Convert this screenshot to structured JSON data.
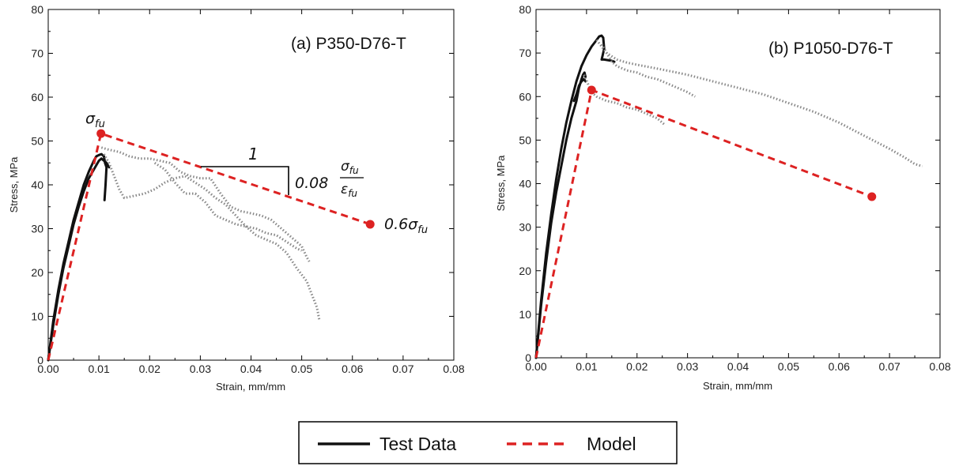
{
  "colors": {
    "test": "#111111",
    "test_scatter": "#888888",
    "model": "#dd2222"
  },
  "legend": {
    "items": [
      {
        "label": "Test Data",
        "style": "solid",
        "color": "#111111"
      },
      {
        "label": "Model",
        "style": "dashed",
        "color": "#dd2222"
      }
    ]
  },
  "annotations": {
    "sigma_fu": "σ",
    "sigma_sub": "fu",
    "slope_run": "1",
    "slope_rise": "0.08",
    "frac_num": "σ",
    "frac_num_sub": "fu",
    "frac_den": "ε",
    "frac_den_sub": "fu",
    "residual": "0.6σ",
    "residual_sub": "fu"
  },
  "chart_data": [
    {
      "type": "line",
      "title": "(a) P350-D76-T",
      "xlabel": "Strain, mm/mm",
      "ylabel": "Stress, MPa",
      "xlim": [
        0,
        0.08
      ],
      "ylim": [
        0,
        80
      ],
      "xticks": [
        "0.00",
        "0.01",
        "0.02",
        "0.03",
        "0.04",
        "0.05",
        "0.06",
        "0.07",
        "0.08"
      ],
      "yticks": [
        "0",
        "10",
        "20",
        "30",
        "40",
        "50",
        "60",
        "70",
        "80"
      ],
      "grid": false,
      "series": [
        {
          "name": "Test Data",
          "style": "solid",
          "x": [
            0,
            0.001,
            0.002,
            0.003,
            0.004,
            0.005,
            0.006,
            0.007,
            0.008,
            0.009,
            0.0095,
            0.01,
            0.0105,
            0.011,
            0.0112,
            0.0115,
            0.0113,
            0.0111
          ],
          "y": [
            0,
            9,
            16,
            22,
            27,
            32,
            36,
            40,
            43,
            45.5,
            46.5,
            46.8,
            47,
            46.5,
            45,
            44,
            40,
            36.5
          ]
        },
        {
          "name": "Test Data",
          "style": "solid",
          "x": [
            0,
            0.001,
            0.002,
            0.003,
            0.004,
            0.005,
            0.006,
            0.007,
            0.008,
            0.009,
            0.0095,
            0.01,
            0.0105,
            0.011,
            0.0115,
            0.012
          ],
          "y": [
            0,
            8,
            15,
            21,
            26,
            31,
            35,
            38.5,
            41.5,
            43.5,
            44.5,
            45.5,
            46,
            45.5,
            45,
            44
          ]
        },
        {
          "name": "Test Data",
          "style": "scatter",
          "x": [
            0.0105,
            0.012,
            0.014,
            0.016,
            0.018,
            0.02,
            0.022,
            0.024,
            0.026,
            0.028,
            0.03,
            0.032,
            0.034,
            0.036,
            0.038,
            0.04,
            0.042,
            0.044,
            0.046,
            0.048,
            0.05,
            0.051,
            0.0515
          ],
          "y": [
            48.5,
            48,
            47.5,
            46.5,
            46,
            46,
            45.5,
            45,
            43,
            42,
            41.5,
            41.5,
            38,
            35,
            34,
            33.5,
            33,
            32,
            30,
            28,
            26,
            23.5,
            22.5
          ]
        },
        {
          "name": "Test Data",
          "style": "scatter",
          "x": [
            0.011,
            0.012,
            0.013,
            0.014,
            0.015,
            0.017,
            0.019,
            0.021,
            0.023,
            0.025,
            0.027,
            0.029,
            0.031,
            0.033,
            0.035,
            0.037,
            0.039,
            0.041,
            0.043,
            0.045,
            0.047,
            0.049,
            0.051,
            0.052,
            0.053,
            0.0535
          ],
          "y": [
            47,
            45,
            42,
            39,
            37,
            37.5,
            38,
            39,
            40.5,
            41.5,
            42,
            40.5,
            39,
            37,
            35.5,
            33,
            30.5,
            28.5,
            27.5,
            26.5,
            24.5,
            21,
            18,
            15,
            12,
            9
          ]
        },
        {
          "name": "Test Data",
          "style": "scatter",
          "x": [
            0.021,
            0.023,
            0.025,
            0.027,
            0.029,
            0.031,
            0.033,
            0.035,
            0.037,
            0.039,
            0.041,
            0.043,
            0.045,
            0.047,
            0.049,
            0.05
          ],
          "y": [
            45,
            43.5,
            40.5,
            38,
            38,
            36,
            33,
            32,
            31,
            30.5,
            30,
            29,
            28.5,
            27,
            25.5,
            25
          ]
        },
        {
          "name": "Model",
          "style": "dashed",
          "x": [
            0,
            0.0104,
            0.0635
          ],
          "y": [
            0,
            51.7,
            31
          ]
        }
      ],
      "points": [
        {
          "x": 0.0104,
          "y": 51.7
        },
        {
          "x": 0.0635,
          "y": 31
        }
      ]
    },
    {
      "type": "line",
      "title": "(b) P1050-D76-T",
      "xlabel": "Strain, mm/mm",
      "ylabel": "Stress, MPa",
      "xlim": [
        0,
        0.08
      ],
      "ylim": [
        0,
        80
      ],
      "xticks": [
        "0.00",
        "0.01",
        "0.02",
        "0.03",
        "0.04",
        "0.05",
        "0.06",
        "0.07",
        "0.08"
      ],
      "yticks": [
        "0",
        "10",
        "20",
        "30",
        "40",
        "50",
        "60",
        "70",
        "80"
      ],
      "grid": false,
      "series": [
        {
          "name": "Test Data",
          "style": "solid",
          "x": [
            0,
            0.001,
            0.002,
            0.003,
            0.004,
            0.005,
            0.006,
            0.007,
            0.008,
            0.009,
            0.01,
            0.011,
            0.012,
            0.0125,
            0.013,
            0.0133,
            0.0135,
            0.0132,
            0.013,
            0.0135,
            0.015,
            0.0155
          ],
          "y": [
            0,
            13,
            24,
            33,
            41,
            48,
            54,
            59,
            63.5,
            67,
            69.5,
            71.5,
            73,
            73.8,
            74,
            73.5,
            71,
            69.5,
            68.5,
            68.5,
            68.2,
            68
          ]
        },
        {
          "name": "Test Data",
          "style": "solid",
          "x": [
            0,
            0.001,
            0.002,
            0.003,
            0.004,
            0.005,
            0.006,
            0.007,
            0.008,
            0.0085,
            0.009,
            0.0093,
            0.0096,
            0.0098
          ],
          "y": [
            0,
            12,
            22,
            31,
            38,
            44,
            50,
            55,
            59,
            62,
            64,
            65,
            65.5,
            64.5
          ]
        },
        {
          "name": "Test Data",
          "style": "solid",
          "x": [
            0.0075,
            0.008,
            0.0085,
            0.009,
            0.0095,
            0.0098
          ],
          "y": [
            59,
            60.5,
            62.5,
            63.5,
            64,
            63.5
          ]
        },
        {
          "name": "Test Data",
          "style": "scatter",
          "x": [
            0.012,
            0.013,
            0.014,
            0.016,
            0.018,
            0.02,
            0.025,
            0.03,
            0.035,
            0.04,
            0.045,
            0.05,
            0.055,
            0.06,
            0.065,
            0.07,
            0.073,
            0.075,
            0.0765
          ],
          "y": [
            73,
            71.5,
            70,
            68.5,
            67.8,
            67.3,
            66.2,
            65,
            63.5,
            62,
            60.5,
            58.5,
            56.5,
            54,
            51,
            48,
            46,
            44.5,
            44
          ]
        },
        {
          "name": "Test Data",
          "style": "scatter",
          "x": [
            0.013,
            0.014,
            0.015,
            0.016,
            0.018,
            0.02,
            0.022,
            0.024,
            0.026,
            0.028,
            0.03,
            0.0315
          ],
          "y": [
            72,
            70,
            68,
            67,
            66,
            65.5,
            64.5,
            64,
            63,
            62,
            61,
            60
          ]
        },
        {
          "name": "Test Data",
          "style": "scatter",
          "x": [
            0.0095,
            0.011,
            0.012,
            0.014,
            0.016,
            0.018,
            0.02,
            0.022,
            0.024,
            0.0255
          ],
          "y": [
            65,
            61,
            60,
            59,
            58.5,
            57.5,
            57,
            56,
            55,
            53.5
          ]
        },
        {
          "name": "Model",
          "style": "dashed",
          "x": [
            0,
            0.011,
            0.0665
          ],
          "y": [
            0,
            61.5,
            37
          ]
        }
      ],
      "points": [
        {
          "x": 0.011,
          "y": 61.5
        },
        {
          "x": 0.0665,
          "y": 37
        }
      ]
    }
  ]
}
